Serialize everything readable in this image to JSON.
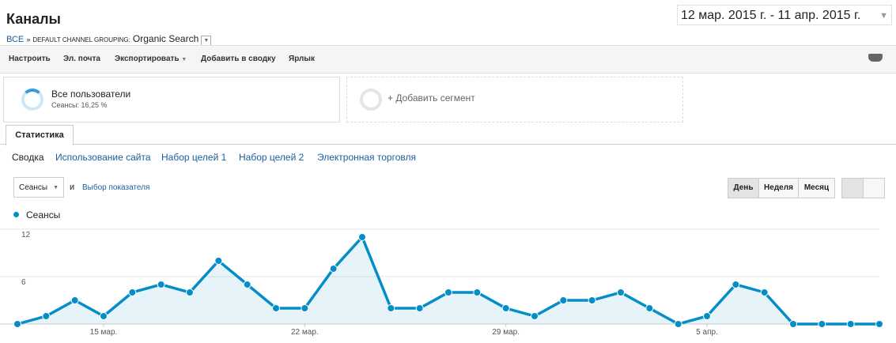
{
  "header": {
    "title": "Каналы",
    "date_range": "12 мар. 2015 г. - 11 апр. 2015 г.",
    "breadcrumb": {
      "root": "ВСЕ",
      "separator": "»",
      "grouping": "DEFAULT CHANNEL GROUPING:",
      "value": "Organic Search"
    }
  },
  "toolbar": [
    "Настроить",
    "Эл. почта",
    "Экспортировать",
    "Добавить в сводку",
    "Ярлык"
  ],
  "segments": {
    "main": {
      "name": "Все пользователи",
      "detail": "Сеансы: 16,25 %"
    },
    "add": "+ Добавить сегмент"
  },
  "tab": "Статистика",
  "subtabs": [
    "Сводка",
    "Использование сайта",
    "Набор целей 1",
    "Набор целей 2",
    "Электронная торговля"
  ],
  "controls": {
    "metric": "Сеансы",
    "conjunction": "и",
    "pick_metric": "Выбор показателя",
    "periods": [
      "День",
      "Неделя",
      "Месяц"
    ]
  },
  "chart_data": {
    "type": "line",
    "categories": [
      null,
      null,
      null,
      "15 мар.",
      null,
      null,
      null,
      null,
      null,
      null,
      "22 мар.",
      null,
      null,
      null,
      null,
      null,
      null,
      "29 мар.",
      null,
      null,
      null,
      null,
      null,
      null,
      "5 апр.",
      null,
      null,
      null,
      null,
      null,
      null
    ],
    "series": [
      {
        "name": "Сеансы",
        "color": "#058dc7",
        "values": [
          0,
          1,
          3,
          1,
          4,
          5,
          4,
          8,
          5,
          2,
          2,
          7,
          11,
          2,
          2,
          4,
          4,
          2,
          1,
          3,
          3,
          4,
          2,
          0,
          1,
          5,
          4,
          0,
          0,
          0,
          0
        ]
      }
    ],
    "ylim": [
      0,
      12
    ],
    "yticks": [
      6,
      12
    ],
    "grid": true
  }
}
